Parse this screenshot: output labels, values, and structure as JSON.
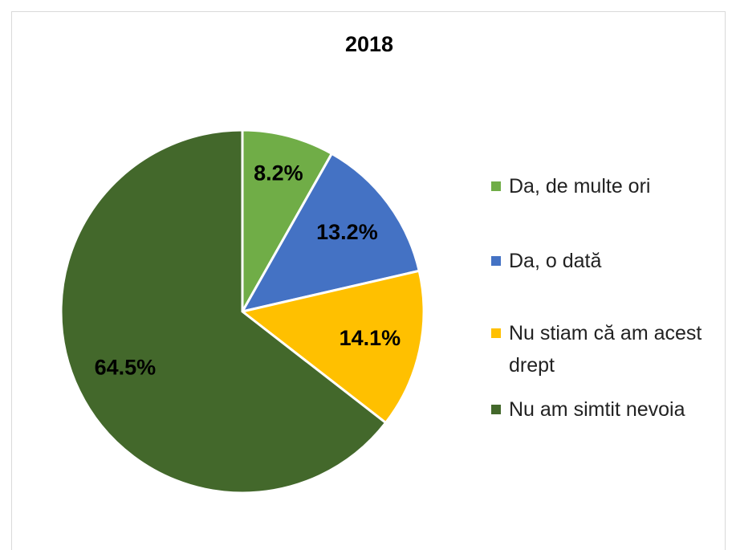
{
  "chart_data": {
    "type": "pie",
    "title": "2018",
    "categories": [
      "Da, de multe ori",
      "Da, o dată",
      "Nu stiam că am acest drept",
      "Nu am simtit nevoia"
    ],
    "values": [
      8.2,
      13.2,
      14.1,
      64.5
    ],
    "value_labels": [
      "8.2%",
      "13.2%",
      "14.1%",
      "64.5%"
    ],
    "colors": [
      "#70ad47",
      "#4472c4",
      "#ffc000",
      "#43682b"
    ],
    "legend": "right"
  }
}
